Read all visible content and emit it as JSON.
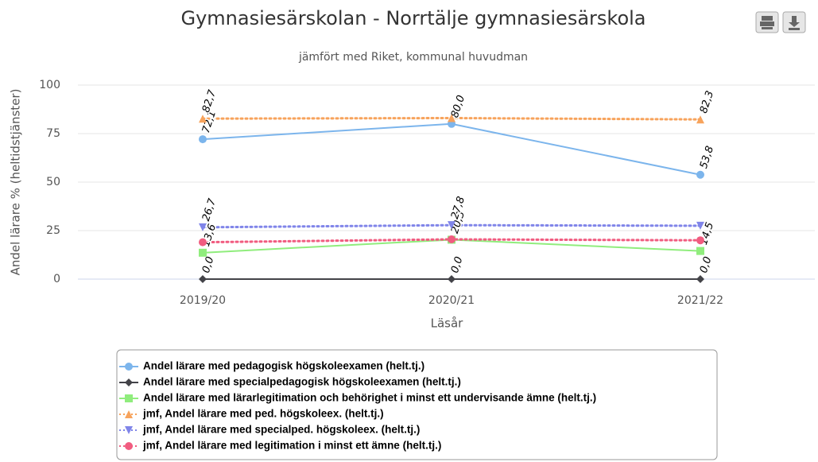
{
  "chart_data": {
    "type": "line",
    "title": "Gymnasiesärskolan - Norrtälje gymnasiesärskola",
    "subtitle": "jämfört med Riket, kommunal huvudman",
    "y_label": "Andel lärare % (heltidstjänster)",
    "x_label": "Läsår",
    "categories": [
      "2019/20",
      "2020/21",
      "2021/22"
    ],
    "ylim": [
      0,
      100
    ],
    "yticks": [
      0,
      25,
      50,
      75,
      100
    ],
    "grid": true,
    "legend": "bottom",
    "series": [
      {
        "name": "Andel lärare med pedagogisk högskoleexamen (helt.tj.)",
        "color": "#7cb5ec",
        "marker": "circle",
        "dash": "solid",
        "values": [
          72.1,
          80.0,
          53.8
        ],
        "value_labels": [
          "72,1",
          "80,0",
          "53,8"
        ]
      },
      {
        "name": "Andel lärare med specialpedagogisk högskoleexamen (helt.tj.)",
        "color": "#434348",
        "marker": "diamond",
        "dash": "solid",
        "values": [
          0.0,
          0.0,
          0.0
        ],
        "value_labels": [
          "0,0",
          "0,0",
          "0,0"
        ]
      },
      {
        "name": "Andel lärare med lärarlegitimation och behörighet i minst ett undervisande ämne (helt.tj.)",
        "color": "#90ed7d",
        "marker": "square",
        "dash": "solid",
        "values": [
          13.6,
          20.3,
          14.5
        ],
        "value_labels": [
          "13,6",
          "20,3",
          "14,5"
        ]
      },
      {
        "name": "jmf, Andel lärare med ped. högskoleex. (helt.tj.)",
        "color": "#f7a35c",
        "marker": "triangle",
        "dash": "dot",
        "values": [
          82.7,
          83.0,
          82.3
        ],
        "value_labels": [
          "82,7",
          null,
          "82,3"
        ]
      },
      {
        "name": "jmf, Andel lärare med specialped. högskoleex. (helt.tj.)",
        "color": "#8085e9",
        "marker": "triangle-down",
        "dash": "dot",
        "values": [
          26.7,
          27.8,
          27.5
        ],
        "value_labels": [
          "26,7",
          "27,8",
          null
        ]
      },
      {
        "name": "jmf, Andel lärare med legitimation i minst ett ämne (helt.tj.)",
        "color": "#f15c80",
        "marker": "circle",
        "dash": "dot",
        "values": [
          19.0,
          20.5,
          20.0
        ],
        "value_labels": [
          null,
          null,
          null
        ]
      }
    ]
  }
}
